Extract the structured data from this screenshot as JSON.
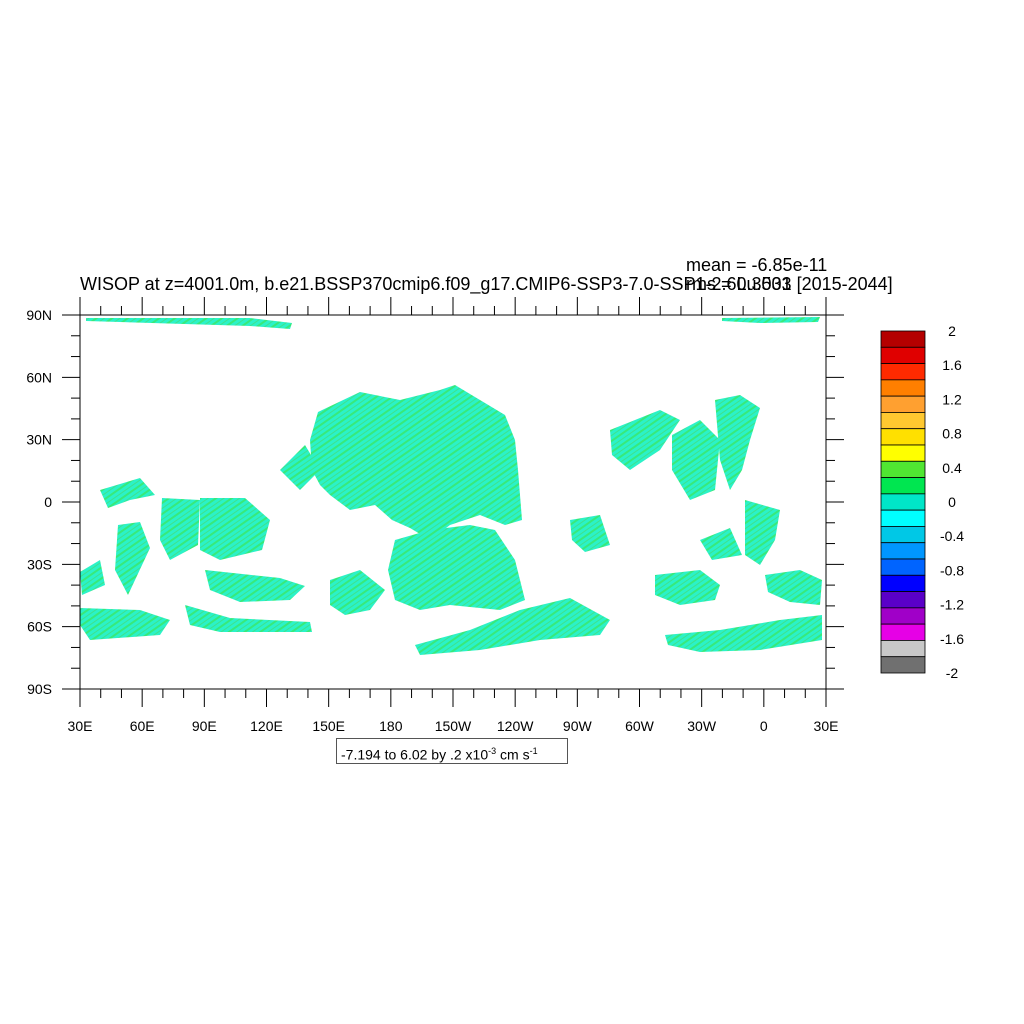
{
  "title": "WISOP at z=4001.0m, b.e21.BSSP370cmip6.f09_g17.CMIP6-SSP3-7.0-SSP1-2.6Lu.001 [2015-2044]",
  "stats": {
    "mean": "mean = -6.85e-11",
    "rms": "rms = 0.3533"
  },
  "info": {
    "range": "-7.194 to 6.02 by .2 x10",
    "exponent": "-3",
    "unit_pre": " cm s",
    "unit_exp": "-1"
  },
  "axes": {
    "y_ticks": [
      "90N",
      "60N",
      "30N",
      "0",
      "30S",
      "60S",
      "90S"
    ],
    "x_ticks": [
      "30E",
      "60E",
      "90E",
      "120E",
      "150E",
      "180",
      "150W",
      "120W",
      "90W",
      "60W",
      "30W",
      "0",
      "30E"
    ]
  },
  "colorbar": {
    "labels": [
      "2",
      "1.6",
      "1.2",
      "0.8",
      "0.4",
      "0",
      "-0.4",
      "-0.8",
      "-1.2",
      "-1.6",
      "-2"
    ],
    "colors": [
      "#b40000",
      "#e00000",
      "#ff2a00",
      "#ff7f00",
      "#ffa030",
      "#ffc830",
      "#ffe000",
      "#ffff00",
      "#50e632",
      "#00e650",
      "#00e6c8",
      "#00ffff",
      "#00c8e6",
      "#0096ff",
      "#0064ff",
      "#0000ff",
      "#5a00c8",
      "#a000c8",
      "#e600e6",
      "#c8c8c8",
      "#707070"
    ]
  },
  "map_colors": {
    "base": "#2bf2c8",
    "accent": "#38e97a"
  }
}
